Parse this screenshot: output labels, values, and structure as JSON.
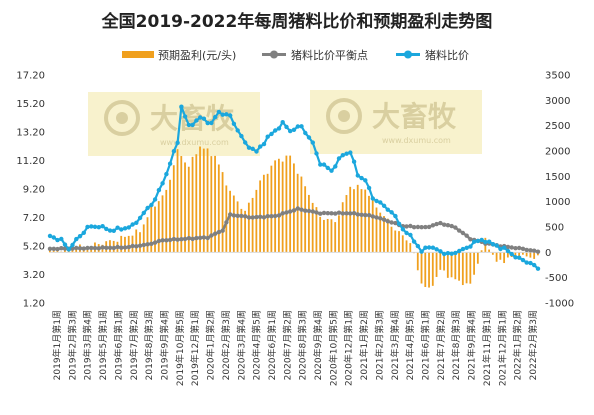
{
  "chart_data": {
    "type": "line+bar",
    "title": "全国2019-2022年每周猪料比价和预期盈利走势图",
    "legend_position": "top",
    "colors": {
      "profit": "#f0a01e",
      "breakeven": "#808080",
      "ratio": "#1ba7dd"
    },
    "left_axis": {
      "range": [
        1.2,
        17.2
      ],
      "ticks": [
        "17.20",
        "15.20",
        "13.20",
        "11.20",
        "9.20",
        "7.20",
        "5.20",
        "3.20",
        "1.20"
      ]
    },
    "right_axis": {
      "range": [
        -1000,
        3500
      ],
      "ticks": [
        "3500",
        "3000",
        "2500",
        "2000",
        "1500",
        "1000",
        "500",
        "0",
        "-500",
        "-1000"
      ]
    },
    "x_tick_labels": [
      "2019年1月第1周",
      "2019年2月第3周",
      "2019年3月第4周",
      "2019年5月第1周",
      "2019年6月第1周",
      "2019年7月第2周",
      "2019年8月第3周",
      "2019年9月第4周",
      "2019年10月第5周",
      "2019年12月第1周",
      "2020年1月第2周",
      "2020年2月第3周",
      "2020年3月第4周",
      "2020年4月第5周",
      "2020年6月第1周",
      "2020年7月第2周",
      "2020年8月第3周",
      "2020年9月第4周",
      "2020年10月第5周",
      "2020年12月第1周",
      "2021年1月第2周",
      "2021年2月第3周",
      "2021年3月第4周",
      "2021年4月第5周",
      "2021年6月第1周",
      "2021年7月第2周",
      "2021年8月第3周",
      "2021年9月第4周",
      "2021年11月第1周",
      "2021年12月第1周",
      "2022年1月第2周",
      "2022年2月第3周"
    ],
    "series": [
      {
        "name": "预期盈利(元/头)",
        "kind": "bar",
        "axis": "right",
        "anchors": [
          [
            0,
            50
          ],
          [
            10,
            120
          ],
          [
            18,
            250
          ],
          [
            24,
            420
          ],
          [
            27,
            850
          ],
          [
            31,
            1200
          ],
          [
            34,
            2000
          ],
          [
            37,
            1700
          ],
          [
            40,
            2100
          ],
          [
            44,
            1900
          ],
          [
            48,
            1200
          ],
          [
            52,
            800
          ],
          [
            56,
            1400
          ],
          [
            60,
            1800
          ],
          [
            64,
            1900
          ],
          [
            68,
            1300
          ],
          [
            72,
            700
          ],
          [
            76,
            600
          ],
          [
            80,
            1300
          ],
          [
            84,
            1250
          ],
          [
            88,
            800
          ],
          [
            92,
            450
          ],
          [
            96,
            200
          ],
          [
            99,
            -600
          ],
          [
            101,
            -750
          ],
          [
            104,
            -350
          ],
          [
            108,
            -550
          ],
          [
            112,
            -650
          ],
          [
            116,
            250
          ],
          [
            119,
            -200
          ],
          [
            124,
            -80
          ],
          [
            130,
            -100
          ]
        ]
      },
      {
        "name": "猪料比价平衡点",
        "kind": "line",
        "axis": "left",
        "anchors": [
          [
            0,
            5.0
          ],
          [
            20,
            5.1
          ],
          [
            26,
            5.3
          ],
          [
            30,
            5.6
          ],
          [
            42,
            5.8
          ],
          [
            46,
            6.3
          ],
          [
            48,
            7.4
          ],
          [
            54,
            7.2
          ],
          [
            60,
            7.3
          ],
          [
            66,
            7.8
          ],
          [
            72,
            7.5
          ],
          [
            80,
            7.5
          ],
          [
            86,
            7.3
          ],
          [
            94,
            6.6
          ],
          [
            100,
            6.5
          ],
          [
            104,
            6.8
          ],
          [
            108,
            6.5
          ],
          [
            112,
            5.7
          ],
          [
            116,
            5.4
          ],
          [
            120,
            5.2
          ],
          [
            126,
            5.0
          ],
          [
            130,
            4.8
          ]
        ]
      },
      {
        "name": "猪料比价",
        "kind": "line",
        "axis": "left",
        "anchors": [
          [
            0,
            5.9
          ],
          [
            3,
            5.6
          ],
          [
            5,
            5.0
          ],
          [
            8,
            5.9
          ],
          [
            10,
            6.5
          ],
          [
            13,
            6.6
          ],
          [
            16,
            6.3
          ],
          [
            19,
            6.4
          ],
          [
            22,
            6.6
          ],
          [
            26,
            7.8
          ],
          [
            28,
            8.5
          ],
          [
            30,
            9.6
          ],
          [
            32,
            11.0
          ],
          [
            34,
            12.5
          ],
          [
            35,
            15.0
          ],
          [
            37,
            13.6
          ],
          [
            40,
            14.2
          ],
          [
            43,
            13.8
          ],
          [
            45,
            14.6
          ],
          [
            48,
            14.3
          ],
          [
            52,
            12.4
          ],
          [
            55,
            11.8
          ],
          [
            58,
            12.8
          ],
          [
            62,
            13.8
          ],
          [
            64,
            13.3
          ],
          [
            67,
            13.6
          ],
          [
            70,
            12.4
          ],
          [
            72,
            11.0
          ],
          [
            75,
            10.5
          ],
          [
            78,
            11.6
          ],
          [
            80,
            11.8
          ],
          [
            82,
            10.2
          ],
          [
            84,
            9.8
          ],
          [
            86,
            8.6
          ],
          [
            88,
            8.2
          ],
          [
            91,
            7.6
          ],
          [
            94,
            6.4
          ],
          [
            97,
            5.6
          ],
          [
            99,
            4.8
          ],
          [
            101,
            5.2
          ],
          [
            104,
            4.8
          ],
          [
            107,
            4.6
          ],
          [
            109,
            4.9
          ],
          [
            111,
            5.0
          ],
          [
            113,
            5.5
          ],
          [
            116,
            5.6
          ],
          [
            118,
            5.3
          ],
          [
            121,
            5.0
          ],
          [
            125,
            4.3
          ],
          [
            128,
            4.0
          ],
          [
            130,
            3.6
          ]
        ]
      }
    ]
  },
  "watermarks": [
    {
      "brand": "大畜牧",
      "url": "www.dxumu.com"
    },
    {
      "brand": "大畜牧",
      "url": "www.dxumu.com"
    }
  ]
}
